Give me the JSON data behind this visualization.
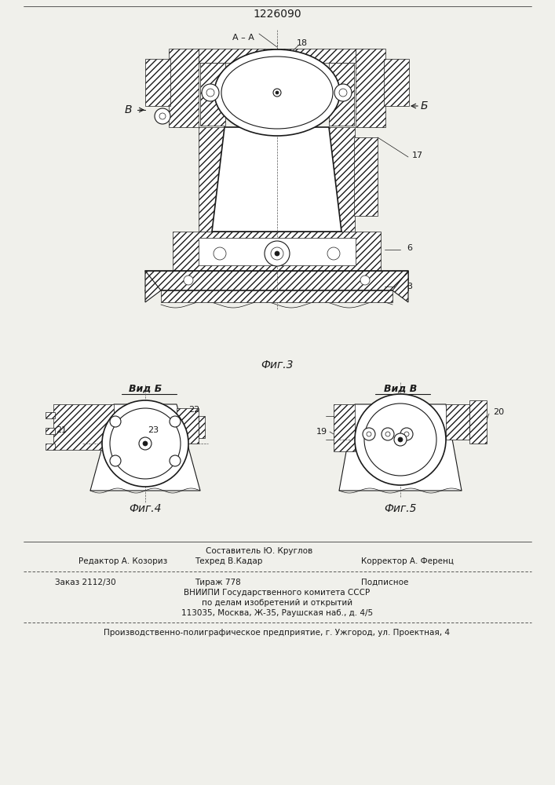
{
  "patent_number": "1226090",
  "bg_color": "#f0f0eb",
  "line_color": "#1a1a1a",
  "fig3_label": "Фиг.3",
  "fig4_label": "Фиг.4",
  "fig5_label": "Фиг.5",
  "view_b_label": "Вид Б",
  "view_v_label": "Вид В",
  "arrow_b": "В",
  "arrow_bb": "Б",
  "num_3": "3",
  "num_6": "6",
  "num_17": "17",
  "num_18": "18",
  "num_19": "19",
  "num_20": "20",
  "num_21": "21",
  "num_22": "22",
  "num_23": "23",
  "footer_comp": "Составитель Ю. Круглов",
  "footer_ed": "Редактор А. Козориз",
  "footer_tech": "Техред В.Кадар",
  "footer_corr": "Корректор А. Ференц",
  "footer_order": "Заказ 2112/30",
  "footer_circ": "Тираж 778",
  "footer_sign": "Подписное",
  "footer_org1": "ВНИИПИ Государственного комитета СССР",
  "footer_org2": "по делам изобретений и открытий",
  "footer_org3": "113035, Москва, Ж-35, Раушская наб., д. 4/5",
  "footer_prod": "Производственно-полиграфическое предприятие, г. Ужгород, ул. Проектная, 4",
  "fig_width": 7.07,
  "fig_height": 10.0,
  "dpi": 100
}
